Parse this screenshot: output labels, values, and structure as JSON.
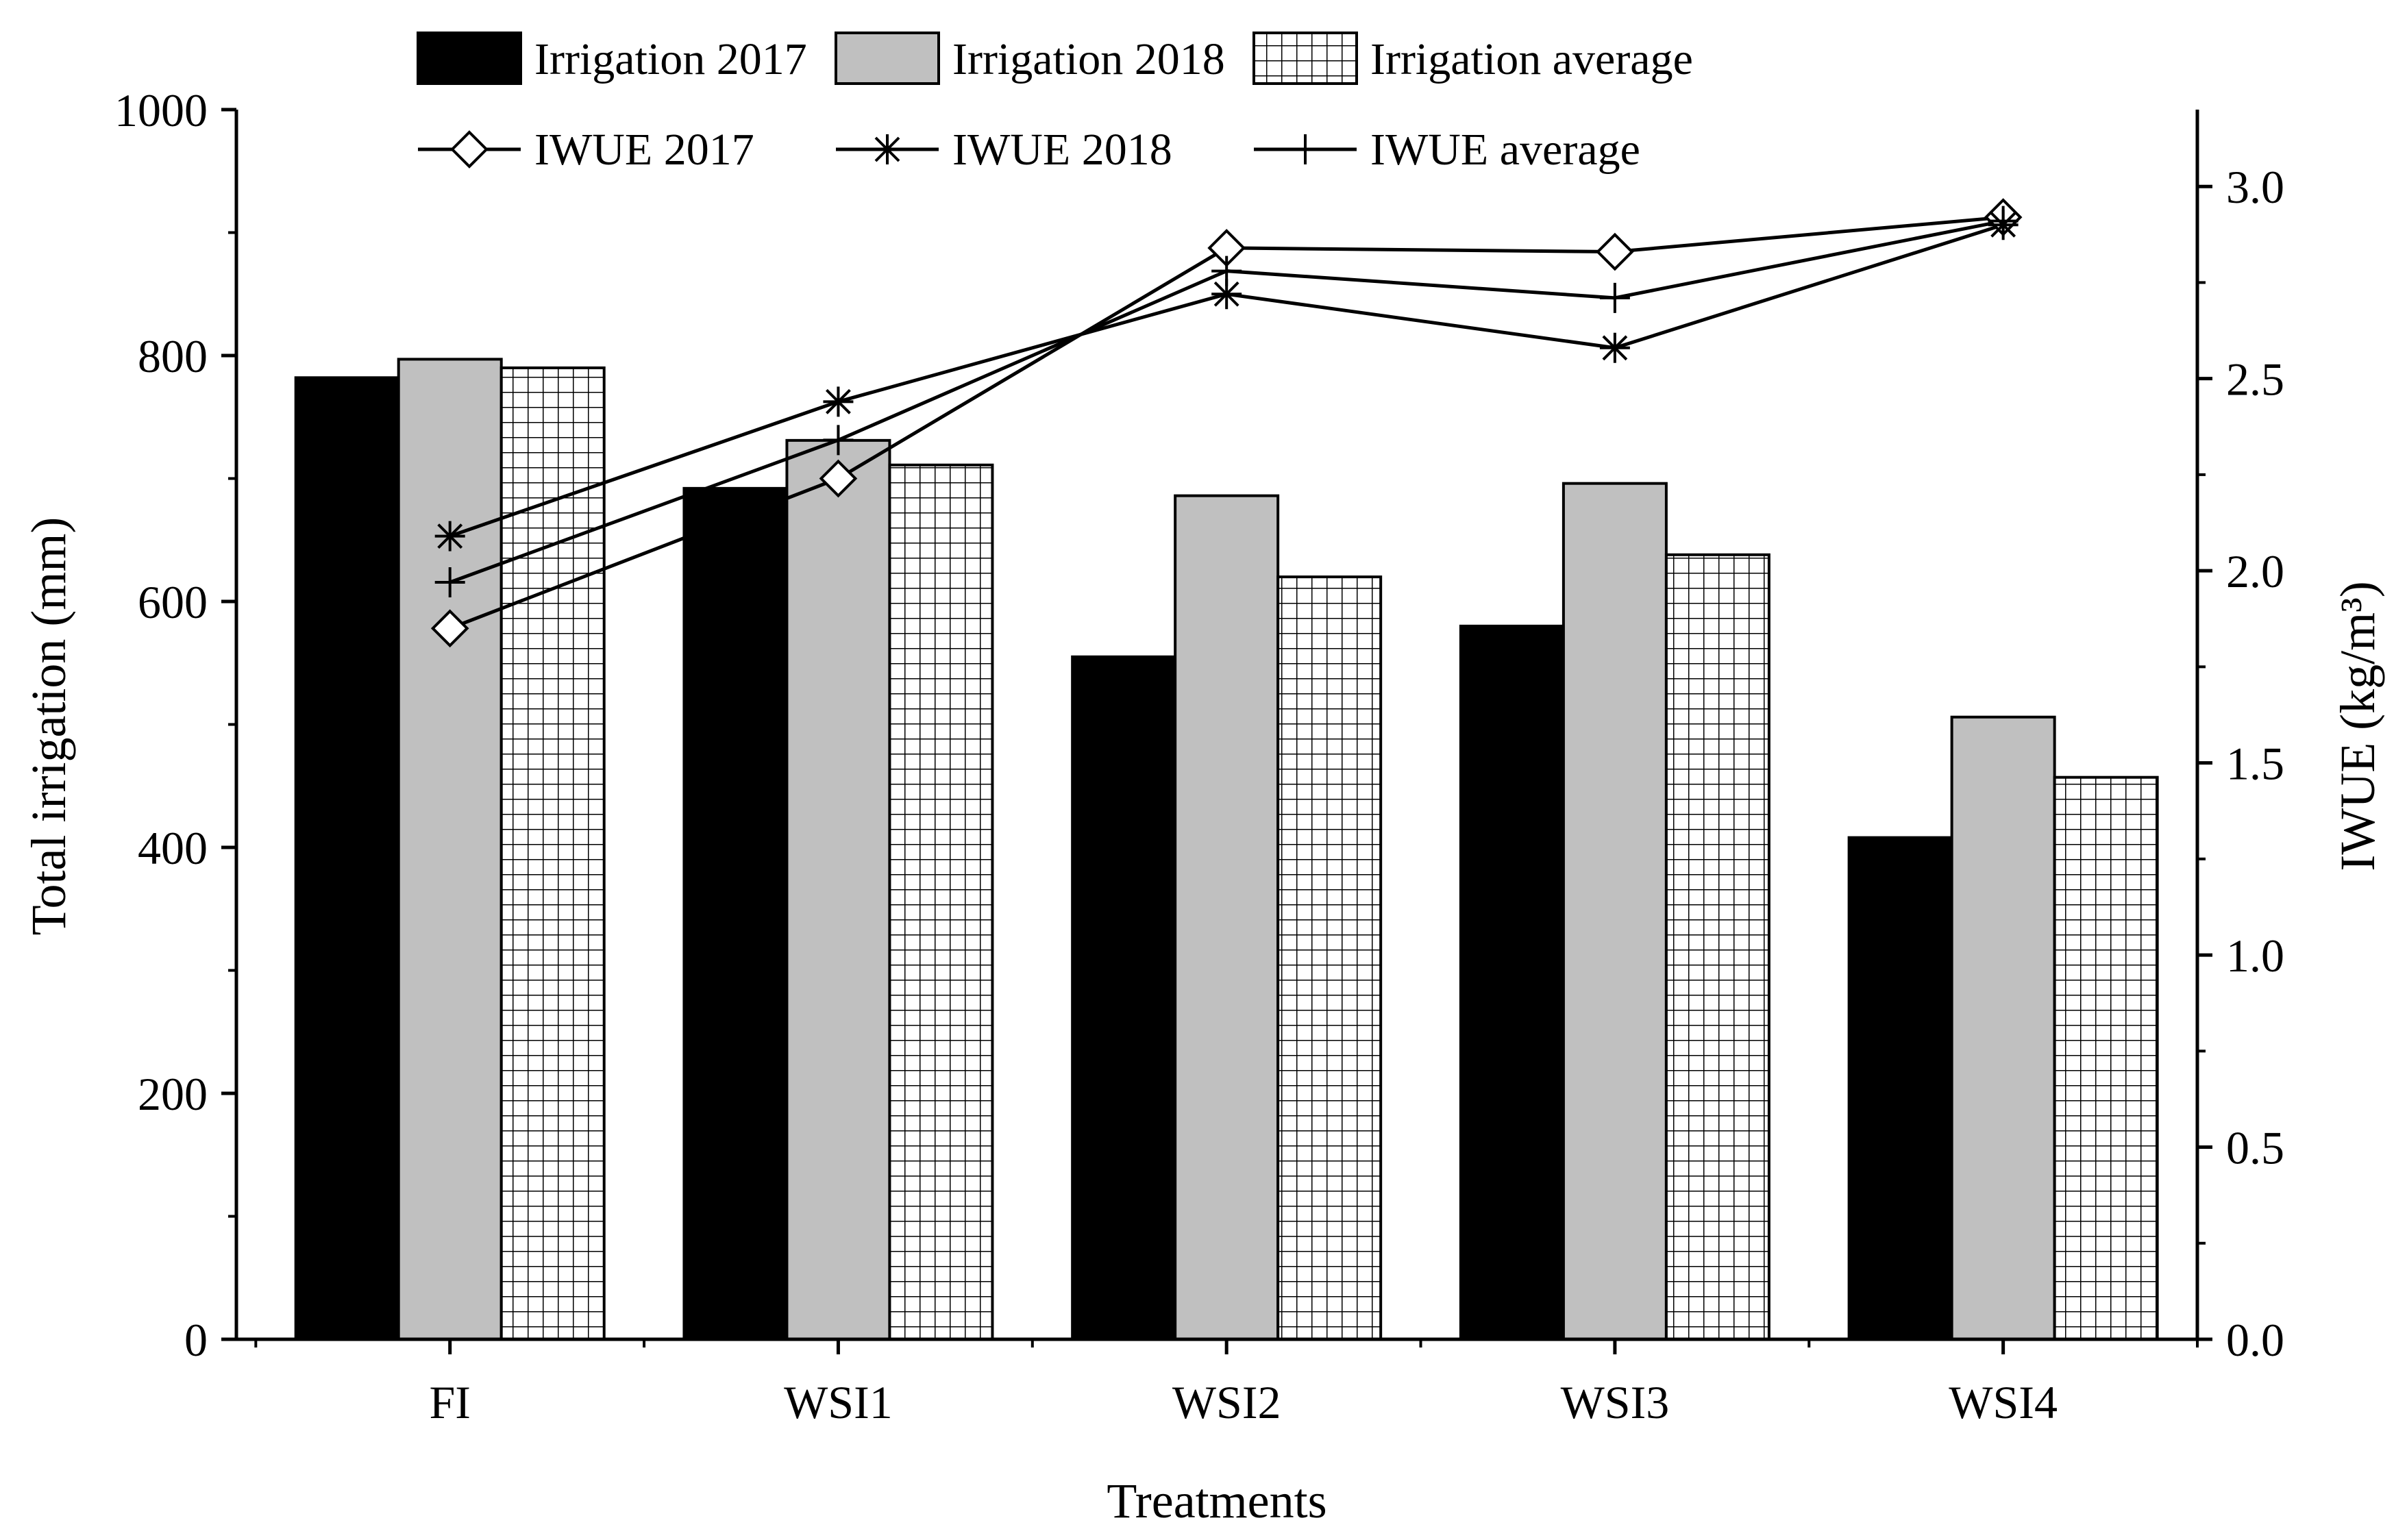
{
  "chart_data": {
    "type": "bar",
    "xlabel": "Treatments",
    "ylabel_left": "Total irrigation (mm)",
    "ylabel_right": "IWUE (kg/m³)",
    "ylim_left": [
      0,
      1000
    ],
    "ylim_right": [
      0,
      3.2
    ],
    "left_ticks": [
      "0",
      "200",
      "400",
      "600",
      "800",
      "1000"
    ],
    "right_ticks": [
      "0.0",
      "0.5",
      "1.0",
      "1.5",
      "2.0",
      "2.5",
      "3.0"
    ],
    "categories": [
      "FI",
      "WSI1",
      "WSI2",
      "WSI3",
      "WSI4"
    ],
    "bar_series": [
      {
        "name": "Irrigation 2017",
        "values": [
          782,
          692,
          555,
          580,
          408
        ]
      },
      {
        "name": "Irrigation 2018",
        "values": [
          797,
          731,
          686,
          696,
          506
        ]
      },
      {
        "name": "Irrigation average",
        "values": [
          790,
          711,
          620,
          638,
          457
        ]
      }
    ],
    "line_series": [
      {
        "name": "IWUE 2017",
        "marker": "diamond",
        "values": [
          1.85,
          2.24,
          2.84,
          2.83,
          2.92
        ]
      },
      {
        "name": "IWUE 2018",
        "marker": "asterisk",
        "values": [
          2.09,
          2.44,
          2.72,
          2.58,
          2.9
        ]
      },
      {
        "name": "IWUE average",
        "marker": "plus",
        "values": [
          1.97,
          2.34,
          2.78,
          2.71,
          2.91
        ]
      }
    ],
    "legend_position": "top",
    "grid": false,
    "colors": {
      "irrigation_2017": "#000000",
      "irrigation_2018": "#c0c0c0",
      "irrigation_average": "#ffffff"
    }
  }
}
